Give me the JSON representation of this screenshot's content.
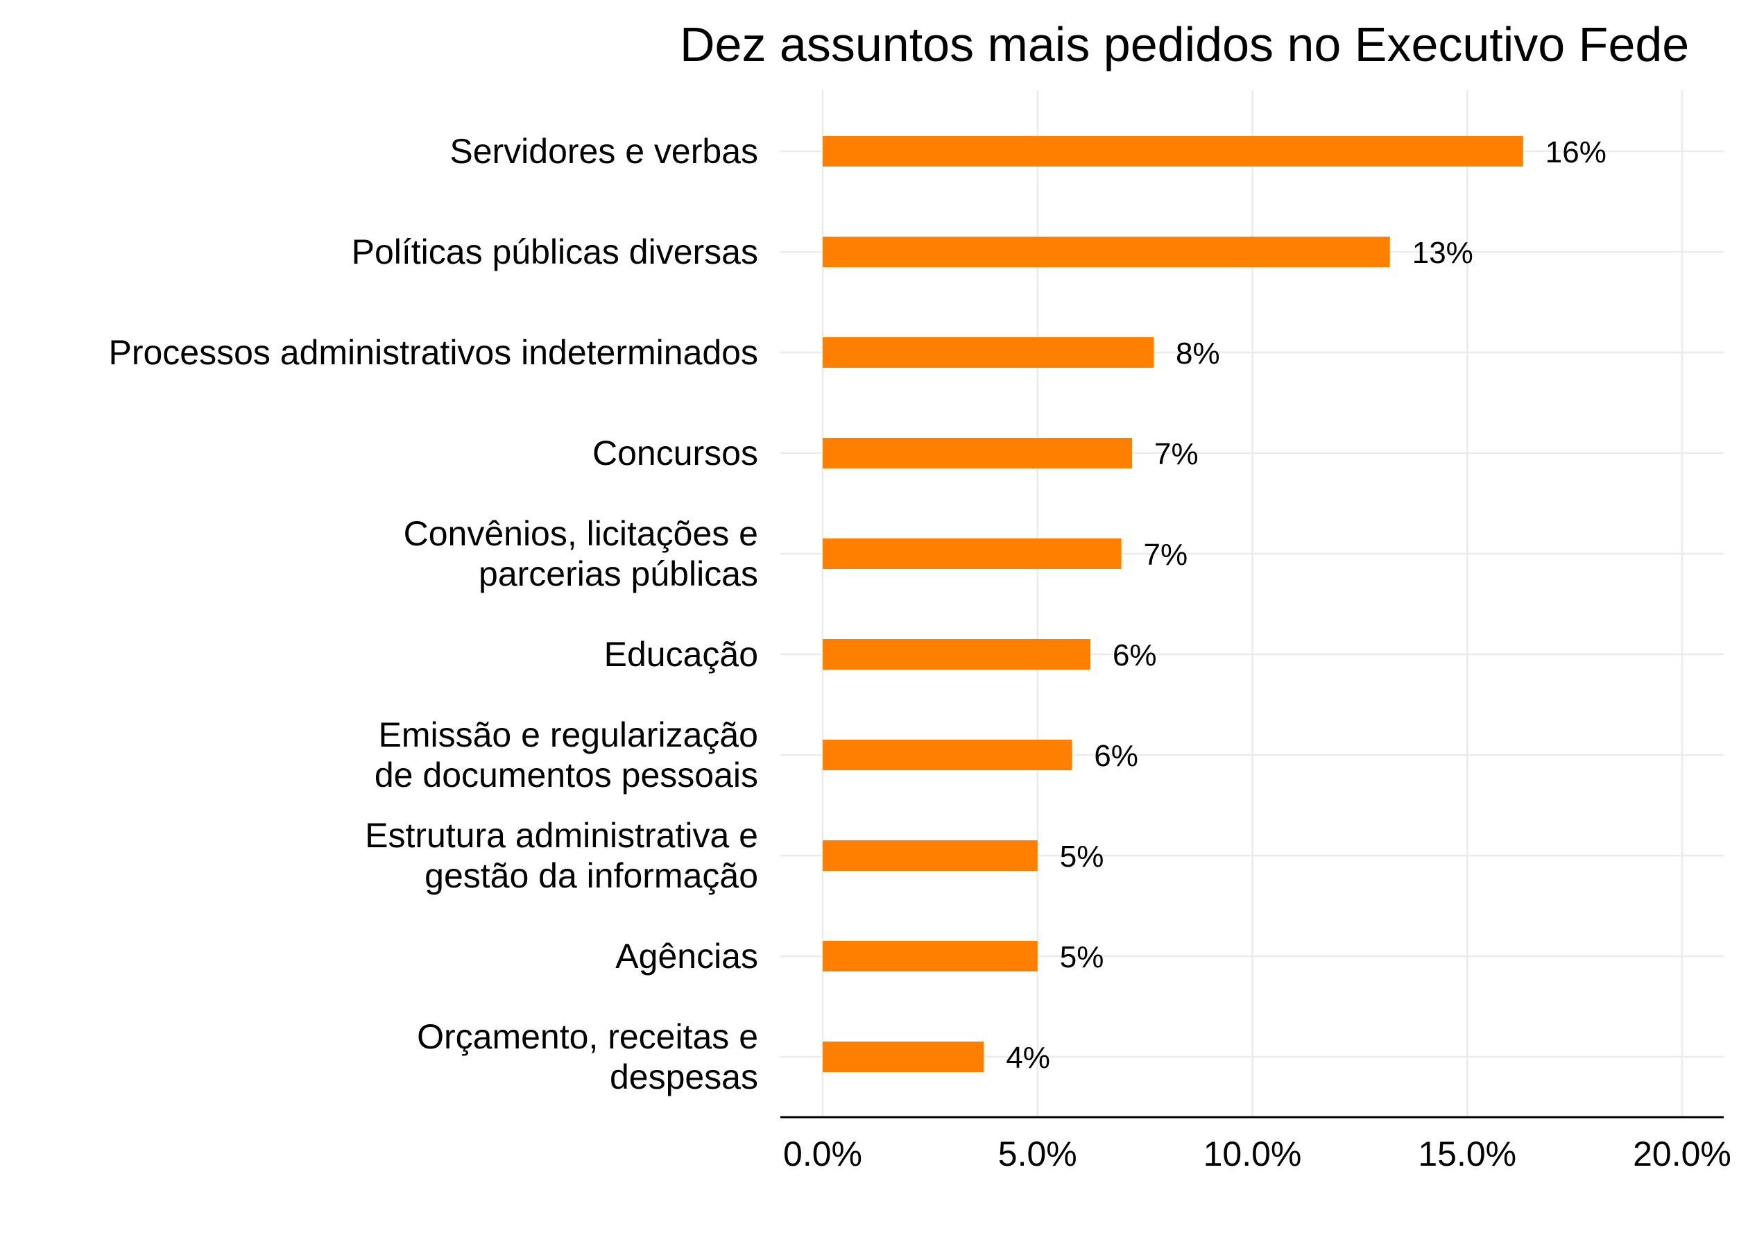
{
  "colors": {
    "bar": "#FF8000",
    "grid": "#EBEBEB",
    "axis": "#000000",
    "background": "#FFFFFF"
  },
  "chart_data": {
    "type": "bar",
    "orientation": "horizontal",
    "title": "Dez assuntos mais pedidos no Executivo Fede",
    "xlabel": "",
    "ylabel": "",
    "xlim": [
      0,
      0.2
    ],
    "grid": true,
    "x_ticks": [
      {
        "value": 0.0,
        "label": "0.0%"
      },
      {
        "value": 0.05,
        "label": "5.0%"
      },
      {
        "value": 0.1,
        "label": "10.0%"
      },
      {
        "value": 0.15,
        "label": "15.0%"
      },
      {
        "value": 0.2,
        "label": "20.0%"
      }
    ],
    "categories": [
      [
        "Servidores e verbas"
      ],
      [
        "Políticas públicas diversas"
      ],
      [
        "Processos administrativos indeterminados"
      ],
      [
        "Concursos"
      ],
      [
        "Convênios, licitações e",
        "parcerias públicas"
      ],
      [
        "Educação"
      ],
      [
        "Emissão e regularização",
        "de documentos pessoais"
      ],
      [
        "Estrutura administrativa e",
        "gestão da informação"
      ],
      [
        "Agências"
      ],
      [
        "Orçamento, receitas e",
        "despesas"
      ]
    ],
    "values": [
      0.163,
      0.132,
      0.077,
      0.072,
      0.0695,
      0.0623,
      0.058,
      0.05,
      0.05,
      0.0375
    ],
    "data_labels": [
      "16%",
      "13%",
      "8%",
      "7%",
      "7%",
      "6%",
      "6%",
      "5%",
      "5%",
      "4%"
    ]
  }
}
